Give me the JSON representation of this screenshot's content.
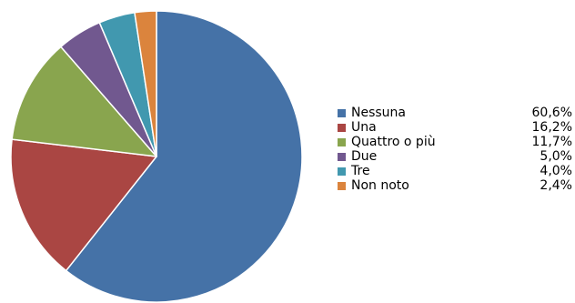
{
  "chart_data": {
    "type": "pie",
    "title": "",
    "start_angle_deg": 0,
    "direction": "clockwise",
    "legend_position": "right",
    "slices": [
      {
        "label": "Nessuna",
        "value": 60.6,
        "value_label": "60,6%",
        "color": "#4572A7"
      },
      {
        "label": "Una",
        "value": 16.2,
        "value_label": "16,2%",
        "color": "#AA4643"
      },
      {
        "label": "Quattro o più",
        "value": 11.7,
        "value_label": "11,7%",
        "color": "#89A54E"
      },
      {
        "label": "Due",
        "value": 5.0,
        "value_label": "5,0%",
        "color": "#71588F"
      },
      {
        "label": "Tre",
        "value": 4.0,
        "value_label": "4,0%",
        "color": "#4198AF"
      },
      {
        "label": "Non noto",
        "value": 2.4,
        "value_label": "2,4%",
        "color": "#DB843D"
      }
    ]
  }
}
